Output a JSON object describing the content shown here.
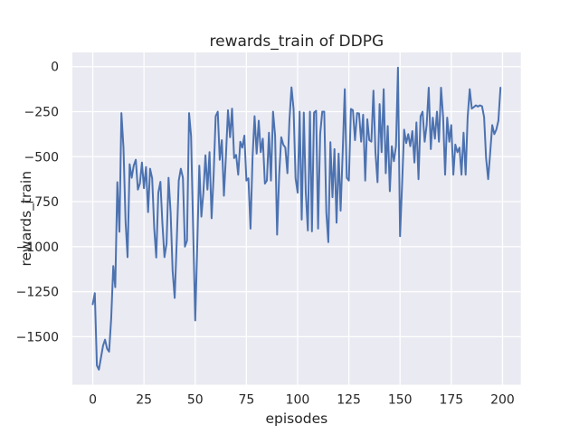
{
  "chart_data": {
    "type": "line",
    "title": "rewards_train of DDPG",
    "xlabel": "episodes",
    "ylabel": "rewards_train",
    "x_ticks": [
      0,
      25,
      50,
      75,
      100,
      125,
      150,
      175,
      200
    ],
    "y_ticks": [
      0,
      -250,
      -500,
      -750,
      -1000,
      -1250,
      -1500
    ],
    "xlim": [
      -9.95,
      208.95
    ],
    "ylim": [
      -1767,
      79
    ],
    "grid": true,
    "legend_position": "none",
    "line_color": "#4c72b0",
    "plot_bg_color": "#eaeaf2",
    "grid_color": "#ffffff",
    "figure_bg_color": "#ffffff",
    "text_color": "#262626",
    "series": [
      {
        "name": "rewards_train",
        "x_start": 0,
        "x_step": 1,
        "values": [
          -1320,
          -1258,
          -1660,
          -1683,
          -1617,
          -1550,
          -1517,
          -1567,
          -1583,
          -1400,
          -1108,
          -1225,
          -642,
          -917,
          -258,
          -450,
          -860,
          -1058,
          -542,
          -617,
          -550,
          -517,
          -683,
          -650,
          -533,
          -675,
          -558,
          -808,
          -567,
          -620,
          -900,
          -1060,
          -700,
          -640,
          -870,
          -1058,
          -983,
          -617,
          -810,
          -1133,
          -1285,
          -965,
          -633,
          -567,
          -617,
          -1000,
          -967,
          -258,
          -385,
          -900,
          -1410,
          -1000,
          -550,
          -833,
          -700,
          -492,
          -683,
          -475,
          -842,
          -608,
          -275,
          -250,
          -517,
          -408,
          -717,
          -500,
          -242,
          -392,
          -233,
          -508,
          -490,
          -600,
          -417,
          -450,
          -383,
          -633,
          -620,
          -900,
          -500,
          -275,
          -483,
          -300,
          -475,
          -400,
          -650,
          -633,
          -367,
          -633,
          -250,
          -383,
          -933,
          -600,
          -392,
          -433,
          -450,
          -592,
          -300,
          -115,
          -235,
          -620,
          -700,
          -250,
          -850,
          -255,
          -700,
          -910,
          -250,
          -915,
          -255,
          -245,
          -900,
          -375,
          -250,
          -250,
          -810,
          -975,
          -420,
          -725,
          -458,
          -867,
          -483,
          -800,
          -475,
          -125,
          -617,
          -633,
          -235,
          -242,
          -408,
          -258,
          -260,
          -417,
          -267,
          -633,
          -292,
          -408,
          -417,
          -133,
          -475,
          -642,
          -208,
          -475,
          -125,
          -592,
          -330,
          -692,
          -442,
          -525,
          -442,
          -5,
          -942,
          -650,
          -350,
          -425,
          -375,
          -442,
          -358,
          -533,
          -310,
          -625,
          -275,
          -250,
          -417,
          -325,
          -117,
          -458,
          -283,
          -400,
          -250,
          -417,
          -117,
          -280,
          -600,
          -283,
          -417,
          -325,
          -600,
          -433,
          -475,
          -450,
          -600,
          -367,
          -600,
          -283,
          -125,
          -233,
          -225,
          -215,
          -222,
          -215,
          -220,
          -280,
          -508,
          -625,
          -480,
          -325,
          -375,
          -350,
          -300,
          -117
        ]
      }
    ]
  }
}
